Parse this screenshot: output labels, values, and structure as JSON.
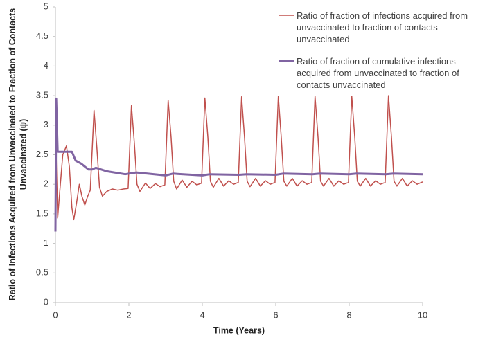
{
  "chart_data": {
    "type": "line",
    "xlabel": "Time (Years)",
    "ylabel": "Ratio of Infections Acquired from Unvaccinated to Fraction of Contacts Unvaccinated (ψ)",
    "xlim": [
      0,
      10
    ],
    "xticks": [
      0,
      2,
      4,
      6,
      8,
      10
    ],
    "ylim": [
      0,
      5
    ],
    "yticks": [
      0,
      0.5,
      1,
      1.5,
      2,
      2.5,
      3,
      3.5,
      4,
      4.5,
      5
    ],
    "grid": false,
    "legend": "upper right",
    "series": [
      {
        "name": "Ratio of fraction of infections acquired from unvaccinated to fraction of contacts unvaccinated",
        "color": "#c0504d",
        "width": 1.5,
        "x": [
          0,
          0.02,
          0.06,
          0.12,
          0.2,
          0.3,
          0.38,
          0.45,
          0.5,
          0.58,
          0.65,
          0.72,
          0.8,
          0.88,
          0.95,
          1.05,
          1.13,
          1.2,
          1.28,
          1.4,
          1.55,
          1.7,
          1.85,
          1.98,
          2.07,
          2.15,
          2.22,
          2.3,
          2.45,
          2.58,
          2.72,
          2.85,
          2.98,
          3.07,
          3.15,
          3.22,
          3.3,
          3.45,
          3.58,
          3.72,
          3.85,
          3.98,
          4.07,
          4.15,
          4.22,
          4.3,
          4.45,
          4.58,
          4.72,
          4.85,
          4.98,
          5.07,
          5.15,
          5.22,
          5.3,
          5.45,
          5.58,
          5.72,
          5.85,
          5.98,
          6.07,
          6.15,
          6.22,
          6.3,
          6.45,
          6.58,
          6.72,
          6.85,
          6.98,
          7.07,
          7.15,
          7.22,
          7.3,
          7.45,
          7.58,
          7.72,
          7.85,
          7.98,
          8.07,
          8.15,
          8.22,
          8.3,
          8.45,
          8.58,
          8.72,
          8.85,
          8.98,
          9.07,
          9.15,
          9.22,
          9.3,
          9.45,
          9.58,
          9.72,
          9.85,
          10
        ],
        "values": [
          3.45,
          2.5,
          1.43,
          1.9,
          2.5,
          2.65,
          2.3,
          1.6,
          1.4,
          1.7,
          2.0,
          1.8,
          1.65,
          1.8,
          1.9,
          3.25,
          2.6,
          1.95,
          1.8,
          1.88,
          1.92,
          1.9,
          1.92,
          1.93,
          3.33,
          2.7,
          2.0,
          1.88,
          2.02,
          1.93,
          2.01,
          1.96,
          1.99,
          3.42,
          2.8,
          2.05,
          1.92,
          2.07,
          1.95,
          2.05,
          1.99,
          2.02,
          3.46,
          2.8,
          2.05,
          1.95,
          2.1,
          1.97,
          2.06,
          2.0,
          2.03,
          3.48,
          2.8,
          2.05,
          1.96,
          2.1,
          1.97,
          2.06,
          2.0,
          2.03,
          3.49,
          2.8,
          2.05,
          1.97,
          2.1,
          1.97,
          2.06,
          2.0,
          2.03,
          3.49,
          2.8,
          2.05,
          1.97,
          2.1,
          1.97,
          2.06,
          2.0,
          2.03,
          3.49,
          2.8,
          2.05,
          1.97,
          2.1,
          1.97,
          2.06,
          2.0,
          2.03,
          3.5,
          2.8,
          2.05,
          1.97,
          2.1,
          1.97,
          2.06,
          2.0,
          2.04
        ]
      },
      {
        "name": "Ratio of fraction of cumulative infections acquired from unvaccinated to fraction of contacts unvaccinated",
        "color": "#8064a2",
        "width": 3,
        "x": [
          0,
          0.02,
          0.06,
          0.45,
          0.55,
          0.7,
          0.9,
          1.0,
          1.1,
          1.4,
          1.9,
          2.2,
          3.0,
          3.2,
          4.0,
          4.2,
          5.0,
          5.2,
          6.0,
          6.2,
          7.0,
          7.2,
          8.0,
          8.2,
          9.0,
          9.2,
          10
        ],
        "values": [
          1.2,
          3.45,
          2.55,
          2.55,
          2.4,
          2.35,
          2.25,
          2.25,
          2.28,
          2.22,
          2.17,
          2.2,
          2.15,
          2.18,
          2.15,
          2.17,
          2.16,
          2.17,
          2.16,
          2.18,
          2.17,
          2.18,
          2.17,
          2.18,
          2.17,
          2.18,
          2.17
        ]
      }
    ]
  }
}
